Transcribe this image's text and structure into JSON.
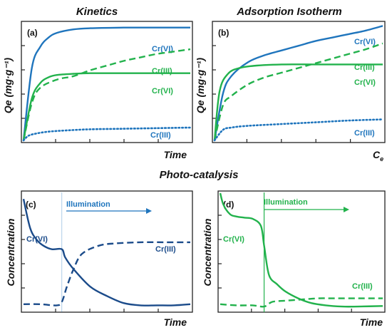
{
  "colors": {
    "blue": "#1f75bd",
    "green": "#22b24c",
    "navy": "#1b4b8a",
    "axis": "#222222"
  },
  "titles": {
    "kinetics": "Kinetics",
    "isotherm": "Adsorption Isotherm",
    "photo": "Photo-catalysis"
  },
  "chart_data": [
    {
      "panel": "(a)",
      "type": "line",
      "title": "Kinetics",
      "xlabel": "Time",
      "ylabel": "Qe (mg·g⁻¹)",
      "series": [
        {
          "name": "Cr(VI)",
          "color": "blue",
          "dash": "solid",
          "x": [
            0,
            0.05,
            0.1,
            0.15,
            0.2,
            0.3,
            0.4,
            0.6,
            0.8,
            1.0
          ],
          "y": [
            0,
            0.62,
            0.8,
            0.88,
            0.92,
            0.95,
            0.96,
            0.965,
            0.965,
            0.965
          ]
        },
        {
          "name": "Cr(III)",
          "color": "green",
          "dash": "dashed",
          "x": [
            0,
            0.05,
            0.1,
            0.2,
            0.3,
            0.4,
            0.5,
            0.6,
            0.7,
            0.8,
            0.9,
            1.0
          ],
          "y": [
            0,
            0.32,
            0.45,
            0.52,
            0.55,
            0.6,
            0.64,
            0.68,
            0.71,
            0.74,
            0.76,
            0.78
          ]
        },
        {
          "name": "Cr(VI)",
          "color": "green",
          "dash": "solid",
          "x": [
            0,
            0.05,
            0.1,
            0.15,
            0.2,
            0.3,
            0.4,
            0.6,
            0.8,
            1.0
          ],
          "y": [
            0,
            0.36,
            0.49,
            0.54,
            0.56,
            0.57,
            0.575,
            0.575,
            0.575,
            0.575
          ]
        },
        {
          "name": "Cr(III)",
          "color": "blue",
          "dash": "dotted",
          "x": [
            0,
            0.03,
            0.08,
            0.15,
            0.25,
            0.4,
            0.6,
            0.8,
            1.0
          ],
          "y": [
            0,
            0.04,
            0.06,
            0.075,
            0.085,
            0.095,
            0.1,
            0.105,
            0.11
          ]
        }
      ],
      "labels": [
        "Cr(VI)",
        "Cr(III)",
        "Cr(VI)",
        "Cr(III)"
      ]
    },
    {
      "panel": "(b)",
      "type": "line",
      "title": "Adsorption Isotherm",
      "xlabel": "C",
      "xlabel_sub": "e",
      "ylabel": "Qe (mg·g⁻¹)",
      "series": [
        {
          "name": "Cr(VI)",
          "color": "blue",
          "dash": "solid",
          "x": [
            0,
            0.05,
            0.1,
            0.2,
            0.3,
            0.4,
            0.5,
            0.6,
            0.7,
            0.8,
            0.9,
            1.0
          ],
          "y": [
            0,
            0.4,
            0.55,
            0.67,
            0.73,
            0.77,
            0.81,
            0.85,
            0.88,
            0.91,
            0.94,
            0.98
          ]
        },
        {
          "name": "Cr(III)",
          "color": "green",
          "dash": "dashed",
          "x": [
            0,
            0.05,
            0.1,
            0.2,
            0.3,
            0.4,
            0.5,
            0.6,
            0.7,
            0.8,
            0.9,
            1.0
          ],
          "y": [
            0,
            0.3,
            0.38,
            0.48,
            0.54,
            0.58,
            0.62,
            0.66,
            0.7,
            0.74,
            0.78,
            0.83
          ]
        },
        {
          "name": "Cr(VI)",
          "color": "green",
          "dash": "solid",
          "x": [
            0,
            0.03,
            0.08,
            0.15,
            0.25,
            0.4,
            0.6,
            0.8,
            1.0
          ],
          "y": [
            0,
            0.42,
            0.57,
            0.62,
            0.64,
            0.65,
            0.65,
            0.65,
            0.65
          ]
        },
        {
          "name": "Cr(III)",
          "color": "blue",
          "dash": "dotted",
          "x": [
            0,
            0.05,
            0.1,
            0.2,
            0.4,
            0.6,
            0.8,
            1.0
          ],
          "y": [
            0,
            0.09,
            0.11,
            0.125,
            0.14,
            0.155,
            0.17,
            0.18
          ]
        }
      ],
      "labels": [
        "Cr(VI)",
        "Cr(III)",
        "Cr(VI)",
        "Cr(III)"
      ]
    },
    {
      "panel": "(c)",
      "type": "line",
      "title": "Photo-catalysis",
      "xlabel": "Time",
      "ylabel": "Concentration",
      "annotation": "Illumination",
      "illumination_x": 0.23,
      "series": [
        {
          "name": "Cr(VI)",
          "color": "navy",
          "dash": "solid",
          "x": [
            0,
            0.04,
            0.08,
            0.12,
            0.17,
            0.23,
            0.25,
            0.3,
            0.4,
            0.5,
            0.6,
            0.7,
            0.8,
            0.9,
            1.0
          ],
          "y": [
            0.95,
            0.7,
            0.6,
            0.55,
            0.52,
            0.52,
            0.45,
            0.35,
            0.2,
            0.12,
            0.06,
            0.04,
            0.04,
            0.04,
            0.05
          ]
        },
        {
          "name": "Cr(III)",
          "color": "navy",
          "dash": "dashed",
          "x": [
            0,
            0.1,
            0.2,
            0.23,
            0.26,
            0.3,
            0.35,
            0.45,
            0.55,
            0.7,
            0.85,
            1.0
          ],
          "y": [
            0.05,
            0.05,
            0.04,
            0.07,
            0.2,
            0.35,
            0.48,
            0.55,
            0.57,
            0.58,
            0.58,
            0.58
          ]
        }
      ],
      "labels": [
        "Cr(VI)",
        "Cr(III)"
      ]
    },
    {
      "panel": "(d)",
      "type": "line",
      "xlabel": "Time",
      "ylabel": "Concentration",
      "annotation": "Illumination",
      "illumination_x": 0.27,
      "series": [
        {
          "name": "Cr(VI)",
          "color": "green",
          "dash": "solid",
          "x": [
            0,
            0.02,
            0.06,
            0.1,
            0.15,
            0.2,
            0.25,
            0.27,
            0.3,
            0.35,
            0.4,
            0.48,
            0.56,
            0.65,
            0.75,
            0.85,
            1.0
          ],
          "y": [
            1.0,
            0.9,
            0.82,
            0.8,
            0.79,
            0.78,
            0.72,
            0.55,
            0.3,
            0.22,
            0.16,
            0.1,
            0.06,
            0.04,
            0.03,
            0.03,
            0.035
          ]
        },
        {
          "name": "Cr(III)",
          "color": "green",
          "dash": "dashed",
          "x": [
            0,
            0.1,
            0.2,
            0.27,
            0.32,
            0.4,
            0.5,
            0.6,
            0.7,
            0.85,
            1.0
          ],
          "y": [
            0.05,
            0.04,
            0.04,
            0.03,
            0.07,
            0.08,
            0.09,
            0.1,
            0.1,
            0.1,
            0.1
          ]
        }
      ],
      "labels": [
        "Cr(VI)",
        "Cr(III)"
      ]
    }
  ]
}
